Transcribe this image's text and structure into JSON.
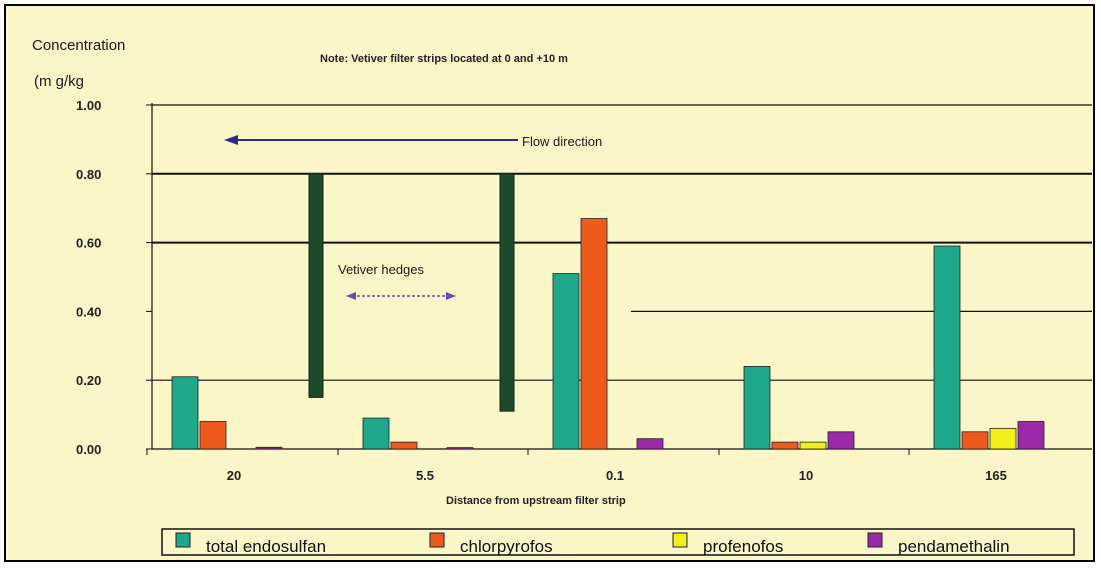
{
  "chart_data": {
    "type": "bar",
    "ylabel_line1": "Concentration",
    "ylabel_line2": "(m g/kg",
    "note": "Note: Vetiver filter strips located at 0 and +10 m",
    "xlabel": "Distance from upstream filter strip",
    "ylim": [
      0,
      1.0
    ],
    "yticks": [
      "0.00",
      "0.20",
      "0.40",
      "0.60",
      "0.80",
      "1.00"
    ],
    "categories": [
      "20",
      "5.5",
      "0.1",
      "10",
      "165"
    ],
    "series": [
      {
        "name": "total endosulfan",
        "color": "#1fa88a",
        "values": [
          0.21,
          0.09,
          0.51,
          0.24,
          0.59
        ]
      },
      {
        "name": "chlorpyrofos",
        "color": "#ee5a1c",
        "values": [
          0.08,
          0.02,
          0.67,
          0.02,
          0.05
        ]
      },
      {
        "name": "profenofos",
        "color": "#f2ef1a",
        "values": [
          0.0,
          0.0,
          0.0,
          0.02,
          0.06
        ]
      },
      {
        "name": "pendamethalin",
        "color": "#9b2aa8",
        "values": [
          0.005,
          0.004,
          0.03,
          0.05,
          0.08
        ]
      }
    ],
    "annotations": {
      "flow": "Flow direction",
      "hedges": "Vetiver hedges"
    },
    "hedge_color": "#1e4a2c",
    "legend_position": "bottom"
  }
}
